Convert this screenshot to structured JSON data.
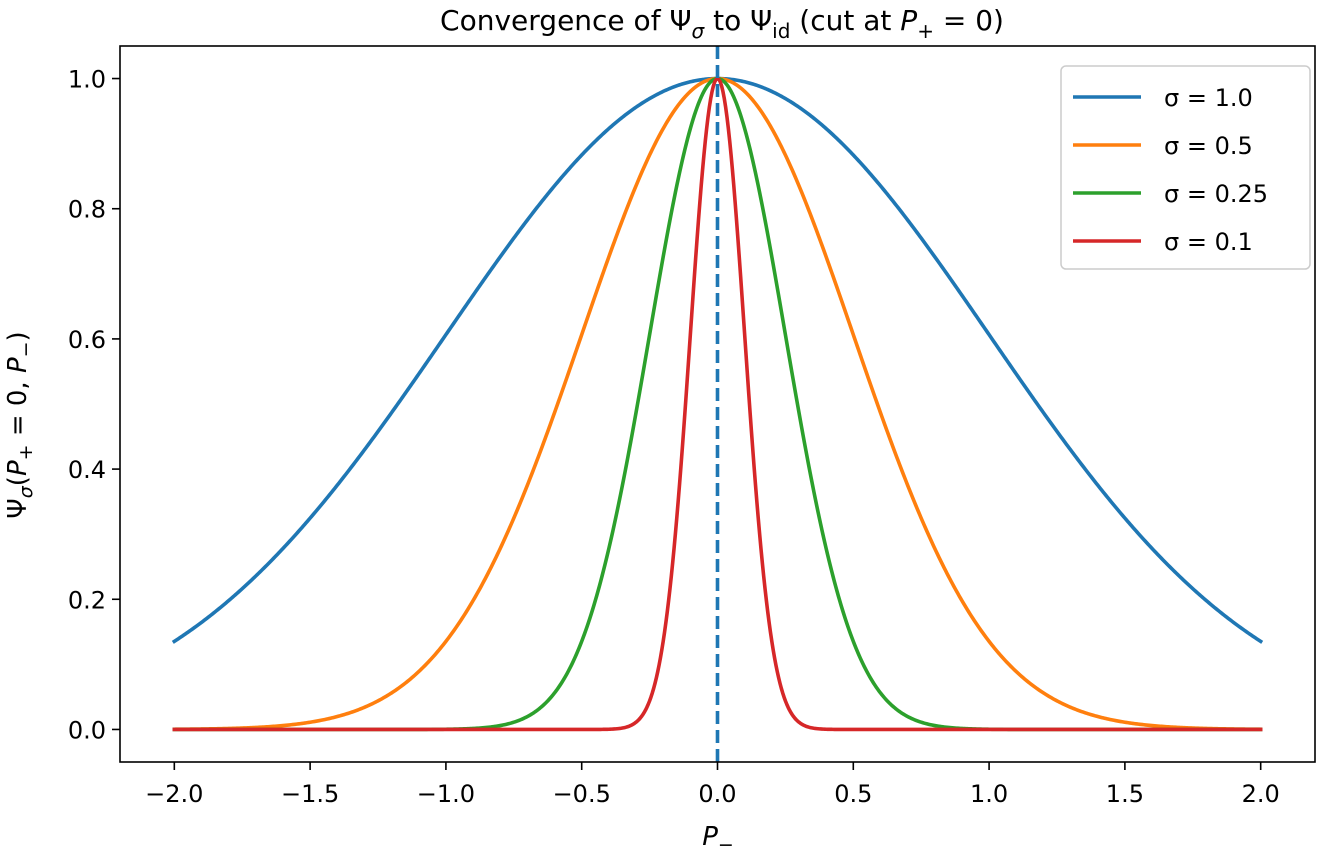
{
  "chart_data": {
    "type": "line",
    "title_parts": {
      "prefix": "Convergence of Ψ",
      "sub1": "σ",
      "middle": " to Ψ",
      "sub2": "id",
      "cut": " (cut at ",
      "var": "P",
      "var_sub": "+",
      "suffix": " = 0)"
    },
    "xlabel": {
      "var": "P",
      "sub": "−"
    },
    "ylabel": {
      "psi": "Ψ",
      "psi_sub": "σ",
      "open": "(",
      "p1": "P",
      "p1_sub": "+",
      "eq": " = 0,  ",
      "p2": "P",
      "p2_sub": "−",
      "close": ")"
    },
    "xlim": [
      -2.2,
      2.2
    ],
    "ylim": [
      -0.05,
      1.05
    ],
    "x_range": [
      -2.0,
      2.0
    ],
    "xticks": [
      -2.0,
      -1.5,
      -1.0,
      -0.5,
      0.0,
      0.5,
      1.0,
      1.5,
      2.0
    ],
    "xtick_labels": [
      "−2.0",
      "−1.5",
      "−1.0",
      "−0.5",
      "0.0",
      "0.5",
      "1.0",
      "1.5",
      "2.0"
    ],
    "yticks": [
      0.0,
      0.2,
      0.4,
      0.6,
      0.8,
      1.0
    ],
    "ytick_labels": [
      "0.0",
      "0.2",
      "0.4",
      "0.6",
      "0.8",
      "1.0"
    ],
    "function": "exp(-x^2 / (2 sigma^2))",
    "series": [
      {
        "name": "σ = 1.0",
        "sigma": 1.0,
        "color": "#1f77b4"
      },
      {
        "name": "σ = 0.5",
        "sigma": 0.5,
        "color": "#ff7f0e"
      },
      {
        "name": "σ = 0.25",
        "sigma": 0.25,
        "color": "#2ca02c"
      },
      {
        "name": "σ = 0.1",
        "sigma": 0.1,
        "color": "#d62728"
      }
    ],
    "vline": {
      "x": 0.0,
      "style": "dashed",
      "color": "#1f77b4"
    },
    "legend_position": "top-right",
    "grid": false
  }
}
